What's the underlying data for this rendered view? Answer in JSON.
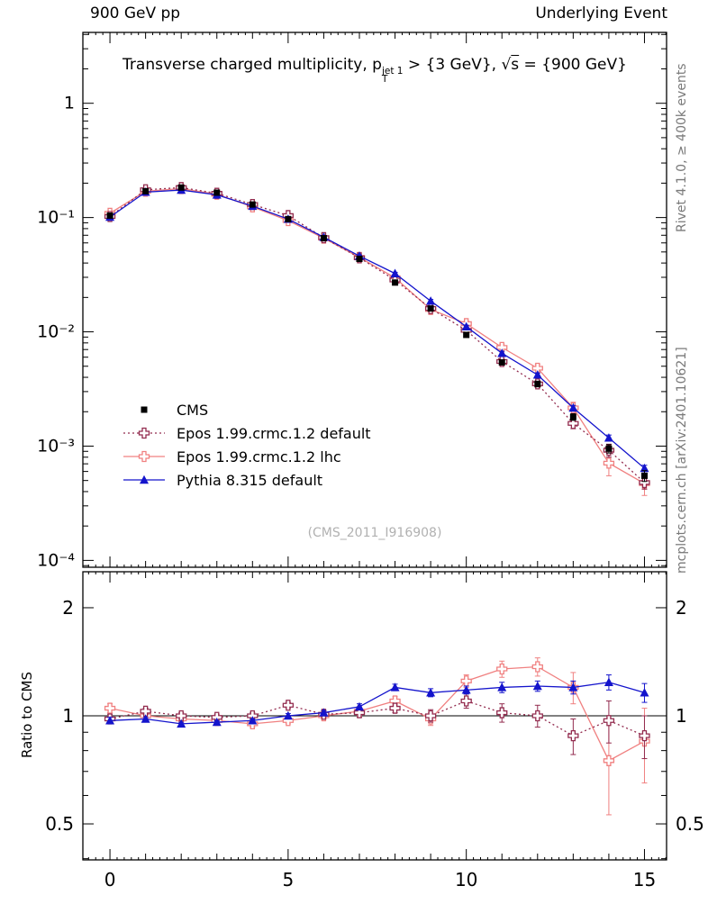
{
  "header": {
    "left": "900 GeV pp",
    "right": "Underlying Event"
  },
  "title_parts": {
    "pre": "Transverse charged multiplicity, p",
    "sup": "jet 1",
    "sub": "T",
    "mid": " > {3 GeV}, ",
    "sqrt": "√",
    "s": "s",
    "post": " = {900 GeV}"
  },
  "side_labels": {
    "right_top": "Rivet 4.1.0, ≥ 400k events",
    "right_bottom": "mcplots.cern.ch [arXiv:2401.10621]"
  },
  "watermark": "(CMS_2011_I916908)",
  "chart_data": {
    "type": "line",
    "title": "Transverse charged multiplicity, p_T^{jet 1} > {3 GeV}, √s = {900 GeV}",
    "xlabel": "",
    "ylabel": "",
    "legend_position": "left-middle",
    "x": [
      0,
      1,
      2,
      3,
      4,
      5,
      6,
      7,
      8,
      9,
      10,
      11,
      12,
      13,
      14,
      15
    ],
    "xlim": [
      -0.76,
      15.62
    ],
    "ylog_range": [
      -4.06,
      0.62
    ],
    "ratio_log2_range": [
      -1.333,
      1.333
    ],
    "axes": {
      "x": {
        "ticks": [
          0,
          5,
          10,
          15
        ],
        "tick_labels": [
          "0",
          "5",
          "10",
          "15"
        ]
      },
      "y_main": {
        "scale": "log",
        "ticks": [
          1,
          0.1,
          0.01,
          0.001,
          0.0001
        ],
        "tick_labels": [
          "1",
          "10⁻¹",
          "10⁻²",
          "10⁻³",
          "10⁻⁴"
        ]
      },
      "y_ratio": {
        "scale": "log",
        "label": "Ratio to CMS",
        "ticks": [
          2,
          1,
          0.5
        ],
        "tick_labels": [
          "2",
          "1",
          "0.5"
        ]
      }
    },
    "series": [
      {
        "key": "cms",
        "name": "CMS",
        "color": "#000000",
        "marker": "square",
        "line": "none",
        "values": [
          0.104,
          0.17,
          0.183,
          0.165,
          0.13,
          0.097,
          0.066,
          0.0435,
          0.027,
          0.016,
          0.0094,
          0.0054,
          0.0035,
          0.0018,
          0.00095,
          0.00055
        ],
        "yerr": [
          0.003,
          0.004,
          0.004,
          0.004,
          0.003,
          0.0025,
          0.002,
          0.0013,
          0.0009,
          0.0006,
          0.0004,
          0.00025,
          0.0002,
          0.00012,
          8e-05,
          6e-05
        ]
      },
      {
        "key": "epos-default",
        "name": "Epos 1.99.crmc.1.2 default",
        "color": "#922b4e",
        "marker": "open-cross",
        "line": "dotted",
        "values": [
          0.102,
          0.175,
          0.183,
          0.163,
          0.13,
          0.104,
          0.0667,
          0.0444,
          0.0284,
          0.016,
          0.0103,
          0.0055,
          0.0035,
          0.00158,
          0.00092,
          0.00048
        ],
        "yerr": [
          0.0031,
          0.0035,
          0.0037,
          0.0033,
          0.0026,
          0.0021,
          0.0013,
          0.0013,
          0.00085,
          0.00064,
          0.0005,
          0.00033,
          0.00025,
          0.00016,
          0.00012,
          6e-05
        ],
        "ratio": [
          0.98,
          1.03,
          1.0,
          0.99,
          1.0,
          1.07,
          1.01,
          1.02,
          1.05,
          1.0,
          1.1,
          1.02,
          1.0,
          0.88,
          0.97,
          0.88
        ],
        "ratio_err": [
          0.03,
          0.02,
          0.02,
          0.02,
          0.02,
          0.02,
          0.02,
          0.03,
          0.03,
          0.04,
          0.05,
          0.06,
          0.07,
          0.1,
          0.13,
          0.12
        ]
      },
      {
        "key": "epos-lhc",
        "name": "Epos 1.99.crmc.1.2 lhc",
        "color": "#f08080",
        "marker": "open-cross",
        "line": "solid",
        "values": [
          0.109,
          0.17,
          0.179,
          0.16,
          0.124,
          0.094,
          0.066,
          0.0448,
          0.0297,
          0.0157,
          0.0118,
          0.0073,
          0.0048,
          0.00216,
          0.00071,
          0.00047
        ],
        "yerr": [
          0.0033,
          0.0034,
          0.0036,
          0.0032,
          0.0025,
          0.0019,
          0.0013,
          0.0013,
          0.0009,
          0.0006,
          0.0006,
          0.0005,
          0.0004,
          0.00026,
          0.00016,
          0.0001
        ],
        "ratio": [
          1.05,
          1.0,
          0.98,
          0.97,
          0.95,
          0.97,
          1.0,
          1.03,
          1.1,
          0.98,
          1.25,
          1.35,
          1.37,
          1.2,
          0.75,
          0.85
        ],
        "ratio_err": [
          0.03,
          0.02,
          0.02,
          0.02,
          0.02,
          0.02,
          0.02,
          0.03,
          0.03,
          0.04,
          0.05,
          0.07,
          0.08,
          0.12,
          0.22,
          0.2
        ]
      },
      {
        "key": "pythia",
        "name": "Pythia 8.315 default",
        "color": "#1414cc",
        "marker": "triangle",
        "line": "solid",
        "values": [
          0.101,
          0.167,
          0.174,
          0.158,
          0.126,
          0.097,
          0.0673,
          0.0461,
          0.0324,
          0.0186,
          0.0111,
          0.0065,
          0.0042,
          0.00216,
          0.00118,
          0.00064
        ],
        "yerr": [
          0.002,
          0.0017,
          0.0017,
          0.0016,
          0.0013,
          0.0015,
          0.001,
          0.0009,
          0.0008,
          0.0006,
          0.0003,
          0.00026,
          0.00017,
          0.00011,
          7e-05,
          4e-05
        ],
        "ratio": [
          0.97,
          0.98,
          0.95,
          0.96,
          0.97,
          1.0,
          1.02,
          1.06,
          1.2,
          1.16,
          1.18,
          1.2,
          1.21,
          1.2,
          1.24,
          1.16
        ],
        "ratio_err": [
          0.02,
          0.01,
          0.01,
          0.01,
          0.01,
          0.015,
          0.015,
          0.02,
          0.025,
          0.03,
          0.03,
          0.04,
          0.04,
          0.05,
          0.06,
          0.07
        ]
      }
    ]
  }
}
